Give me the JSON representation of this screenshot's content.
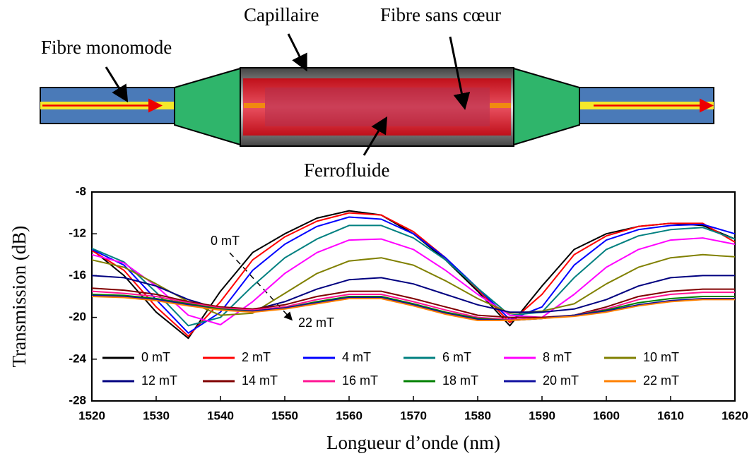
{
  "diagram": {
    "labels": [
      "Fibre monomode",
      "Capillaire",
      "Fibre sans cœur",
      "Ferrofluide"
    ]
  },
  "chart_data": {
    "type": "line",
    "xlabel": "Longueur d’onde (nm)",
    "ylabel": "Transmission (dB)",
    "annotations": [
      "0 mT",
      "22 mT"
    ],
    "x": [
      1520,
      1525,
      1530,
      1535,
      1540,
      1545,
      1550,
      1555,
      1560,
      1565,
      1570,
      1575,
      1580,
      1585,
      1590,
      1595,
      1600,
      1605,
      1610,
      1615,
      1620
    ],
    "xlim": [
      1520,
      1620
    ],
    "xticks": [
      1520,
      1530,
      1540,
      1550,
      1560,
      1570,
      1580,
      1590,
      1600,
      1610,
      1620
    ],
    "ylim": [
      -28,
      -8
    ],
    "yticks": [
      -28,
      -24,
      -20,
      -16,
      -12,
      -8
    ],
    "series": [
      {
        "name": "0 mT",
        "color": "#000000",
        "values": [
          -13.5,
          -16,
          -19.5,
          -22,
          -17.5,
          -13.8,
          -12,
          -10.5,
          -9.8,
          -10.2,
          -12,
          -14.5,
          -17.5,
          -20.8,
          -17,
          -13.5,
          -12,
          -11.3,
          -11,
          -11.2,
          -12.5
        ]
      },
      {
        "name": "2 mT",
        "color": "#ff0000",
        "values": [
          -13.6,
          -15.5,
          -19,
          -21.8,
          -18.5,
          -14.5,
          -12.3,
          -10.8,
          -10,
          -10.2,
          -11.8,
          -14.3,
          -17.3,
          -20.5,
          -17.8,
          -14,
          -12.2,
          -11.3,
          -11,
          -11,
          -12.8
        ]
      },
      {
        "name": "4 mT",
        "color": "#0000ff",
        "values": [
          -13.5,
          -15,
          -18.3,
          -21.5,
          -19.5,
          -15.5,
          -13,
          -11.3,
          -10.4,
          -10.6,
          -12,
          -14.3,
          -17.2,
          -20.2,
          -19,
          -15,
          -12.6,
          -11.6,
          -11.2,
          -11.1,
          -12
        ]
      },
      {
        "name": "6 mT",
        "color": "#008080",
        "values": [
          -13.4,
          -14.7,
          -17.6,
          -20.8,
          -20,
          -17,
          -14.3,
          -12.5,
          -11.2,
          -11.2,
          -12.4,
          -14.5,
          -17.2,
          -19.8,
          -19.5,
          -16.2,
          -13.5,
          -12.2,
          -11.6,
          -11.4,
          -12.5
        ]
      },
      {
        "name": "8 mT",
        "color": "#ff00ff",
        "values": [
          -14,
          -14.8,
          -17,
          -19.8,
          -20.7,
          -18.5,
          -15.8,
          -13.8,
          -12.6,
          -12.5,
          -13.5,
          -15.5,
          -17.8,
          -19.8,
          -20,
          -17.8,
          -15.2,
          -13.5,
          -12.6,
          -12.4,
          -13
        ]
      },
      {
        "name": "10 mT",
        "color": "#808000",
        "values": [
          -14.5,
          -15.2,
          -16.8,
          -18.5,
          -19.8,
          -19.6,
          -17.7,
          -15.8,
          -14.6,
          -14.3,
          -15,
          -16.5,
          -18.2,
          -19.6,
          -19.4,
          -18.7,
          -16.8,
          -15.2,
          -14.3,
          -14,
          -14.2
        ]
      },
      {
        "name": "12 mT",
        "color": "#000080",
        "values": [
          -16,
          -16.2,
          -17,
          -18.3,
          -19.2,
          -19.3,
          -18.5,
          -17.3,
          -16.4,
          -16.2,
          -16.8,
          -17.8,
          -18.8,
          -19.5,
          -19.5,
          -19.2,
          -18.3,
          -17,
          -16.2,
          -16,
          -16
        ]
      },
      {
        "name": "14 mT",
        "color": "#800000",
        "values": [
          -17.2,
          -17.4,
          -17.8,
          -18.5,
          -19,
          -19.2,
          -18.8,
          -18,
          -17.5,
          -17.5,
          -18.2,
          -19,
          -19.8,
          -20,
          -20,
          -19.8,
          -19,
          -18,
          -17.5,
          -17.3,
          -17.3
        ]
      },
      {
        "name": "16 mT",
        "color": "#ff1493",
        "values": [
          -17.5,
          -17.7,
          -18,
          -18.6,
          -19.1,
          -19.3,
          -19,
          -18.3,
          -17.8,
          -17.8,
          -18.5,
          -19.3,
          -20,
          -20.2,
          -20.1,
          -19.8,
          -19.2,
          -18.3,
          -17.8,
          -17.6,
          -17.6
        ]
      },
      {
        "name": "18 mT",
        "color": "#008000",
        "values": [
          -17.8,
          -17.9,
          -18.2,
          -18.7,
          -19.2,
          -19.4,
          -19.1,
          -18.5,
          -18,
          -18,
          -18.7,
          -19.5,
          -20.1,
          -20.3,
          -20.1,
          -19.8,
          -19.3,
          -18.6,
          -18.2,
          -18,
          -18
        ]
      },
      {
        "name": "20 mT",
        "color": "#1010a0",
        "values": [
          -17.9,
          -18,
          -18.3,
          -18.8,
          -19.3,
          -19.4,
          -19.1,
          -18.6,
          -18.1,
          -18.1,
          -18.8,
          -19.6,
          -20.2,
          -20.3,
          -20.1,
          -19.8,
          -19.4,
          -18.8,
          -18.4,
          -18.2,
          -18.2
        ]
      },
      {
        "name": "22 mT",
        "color": "#ff8000",
        "values": [
          -18,
          -18.1,
          -18.4,
          -18.9,
          -19.3,
          -19.5,
          -19.2,
          -18.7,
          -18.2,
          -18.2,
          -18.9,
          -19.7,
          -20.3,
          -20.3,
          -20.1,
          -19.9,
          -19.5,
          -18.9,
          -18.5,
          -18.3,
          -18.3
        ]
      }
    ]
  }
}
